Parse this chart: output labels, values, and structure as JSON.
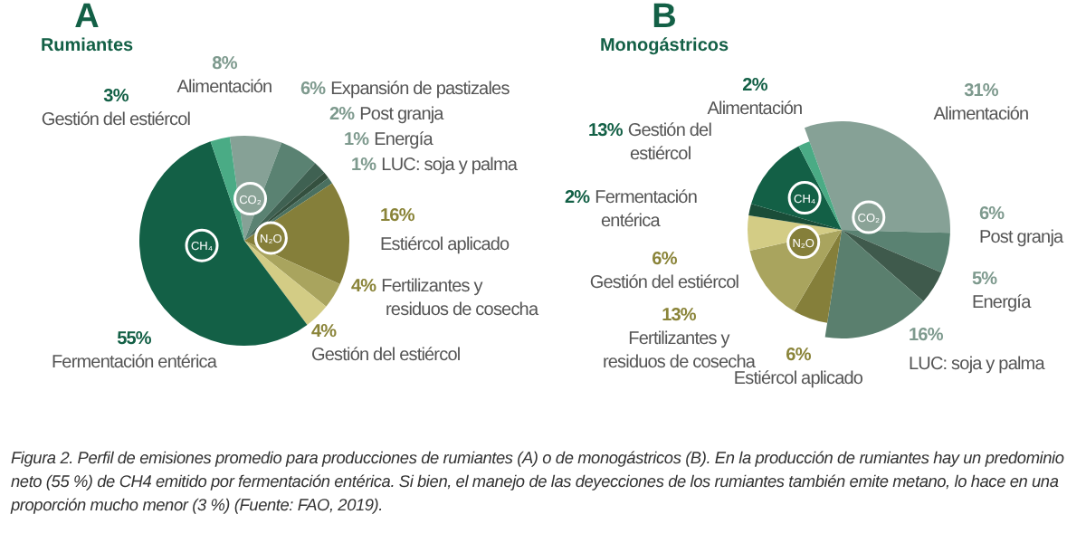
{
  "chart_data": [
    {
      "type": "pie",
      "title": "A",
      "subtitle": "Rumiantes",
      "categories": [
        "Alimentación",
        "Expansión de pastizales",
        "Post granja",
        "Energía",
        "LUC: soja y palma",
        "Estiércol aplicado",
        "Fertilizantes y residuos de cosecha",
        "Gestión del estiércol",
        "Fermentación entérica",
        "Gestión del estiércol"
      ],
      "values": [
        8,
        6,
        2,
        1,
        1,
        16,
        4,
        4,
        55,
        3
      ],
      "colors": [
        "#86a196",
        "#5a8272",
        "#3f6152",
        "#34503f",
        "#4a7060",
        "#857f3a",
        "#a9a45e",
        "#d3cc85",
        "#136046",
        "#4aab85"
      ],
      "value_labels": [
        "8%",
        "6%",
        "2%",
        "1%",
        "1%",
        "16%",
        "4%",
        "4%",
        "55%",
        "3%"
      ],
      "annotations": [
        "CO₂",
        "N₂O",
        "CH₄",
        "Figura 2. Perfil de emisiones promedio para producciones de rumiantes (A) o de monogástricos (B). En la producción de rumiantes hay un predominio neto (55 %) de CH4 emitido por fermentación entérica. Si bien, el manejo de las deyecciones de los rumiantes también emite metano, lo hace en una proporción mucho menor (3 %) (Fuente: FAO, 2019)."
      ]
    },
    {
      "type": "pie",
      "title": "B",
      "subtitle": "Monogástricos",
      "categories": [
        "Alimentación",
        "Post granja",
        "Energía",
        "LUC: soja y palma",
        "Estiércol aplicado",
        "Fertilizantes y residuos de cosecha",
        "Gestión del estiércol",
        "Fermentación entérica",
        "Gestión del estiércol",
        "Alimentación"
      ],
      "values": [
        31,
        6,
        5,
        16,
        6,
        13,
        6,
        2,
        13,
        2
      ],
      "colors": [
        "#86a196",
        "#5a8272",
        "#3f5a4c",
        "#5a7f6e",
        "#857f3a",
        "#a9a45e",
        "#d3cc85",
        "#1a4d38",
        "#136046",
        "#4aab85"
      ],
      "value_labels": [
        "31%",
        "6%",
        "5%",
        "16%",
        "6%",
        "13%",
        "6%",
        "2%",
        "13%",
        "2%"
      ],
      "annotations": [
        "CO₂",
        "N₂O",
        "CH₄"
      ]
    }
  ]
}
